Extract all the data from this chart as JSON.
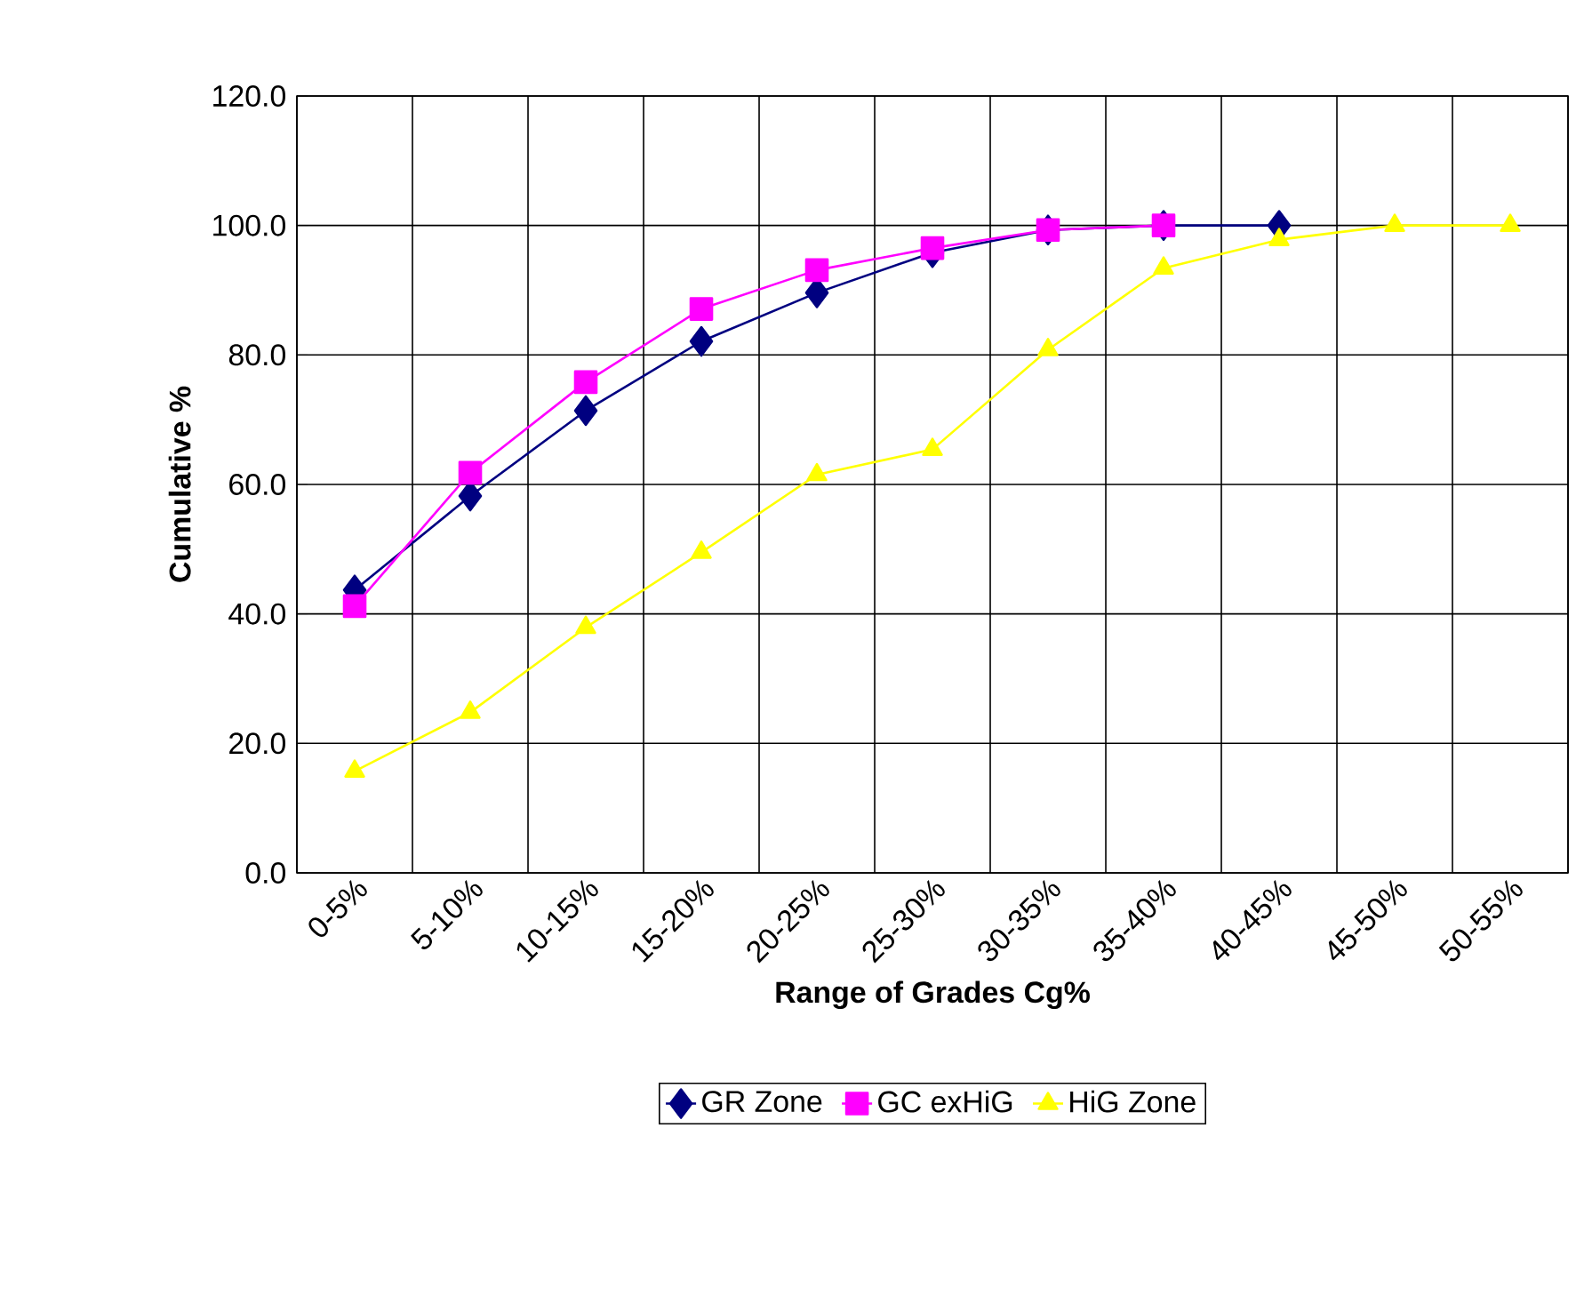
{
  "chart_data": {
    "type": "line",
    "xlabel": "Range of Grades Cg%",
    "ylabel": "Cumulative %",
    "categories": [
      "0-5%",
      "5-10%",
      "10-15%",
      "15-20%",
      "20-25%",
      "25-30%",
      "30-35%",
      "35-40%",
      "40-45%",
      "45-50%",
      "50-55%"
    ],
    "series": [
      {
        "name": "GR Zone",
        "color": "#000080",
        "marker": "diamond",
        "values": [
          43.7,
          58.2,
          71.4,
          82.1,
          89.6,
          95.8,
          99.3,
          100.0,
          100.0,
          null,
          null
        ]
      },
      {
        "name": "GC exHiG",
        "color": "#ff00ff",
        "marker": "square",
        "values": [
          41.2,
          61.8,
          75.8,
          87.1,
          93.1,
          96.5,
          99.3,
          100.0,
          null,
          null,
          null
        ]
      },
      {
        "name": "HiG Zone",
        "color": "#ffff00",
        "marker": "triangle",
        "values": [
          15.7,
          24.8,
          37.9,
          49.5,
          61.5,
          65.4,
          80.8,
          93.4,
          97.8,
          100.0,
          100.0
        ]
      }
    ],
    "ylim": [
      0,
      120
    ],
    "yticks": [
      {
        "value": 0,
        "label": "0.0"
      },
      {
        "value": 20,
        "label": "20.0"
      },
      {
        "value": 40,
        "label": "40.0"
      },
      {
        "value": 60,
        "label": "60.0"
      },
      {
        "value": 80,
        "label": "80.0"
      },
      {
        "value": 100,
        "label": "100.0"
      },
      {
        "value": 120,
        "label": "120.0"
      }
    ],
    "grid": true,
    "legend": "bottom",
    "line_style": "solid"
  }
}
